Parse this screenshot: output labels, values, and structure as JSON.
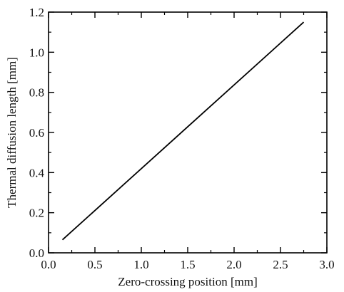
{
  "chart_data": {
    "type": "line",
    "title": "",
    "xlabel": "Zero-crossing position [mm]",
    "ylabel": "Thermal diffusion length [mm]",
    "xlim": [
      0.0,
      3.0
    ],
    "ylim": [
      0.0,
      1.2
    ],
    "xticks": [
      0.0,
      0.5,
      1.0,
      1.5,
      2.0,
      2.5,
      3.0
    ],
    "yticks": [
      0.0,
      0.2,
      0.4,
      0.6,
      0.8,
      1.0,
      1.2
    ],
    "xtick_labels": [
      "0.0",
      "0.5",
      "1.0",
      "1.5",
      "2.0",
      "2.5",
      "3.0"
    ],
    "ytick_labels": [
      "0.0",
      "0.2",
      "0.4",
      "0.6",
      "0.8",
      "1.0",
      "1.2"
    ],
    "grid": false,
    "series": [
      {
        "x": [
          0.15,
          2.75
        ],
        "y": [
          0.065,
          1.15
        ],
        "color": "#000000"
      }
    ]
  }
}
